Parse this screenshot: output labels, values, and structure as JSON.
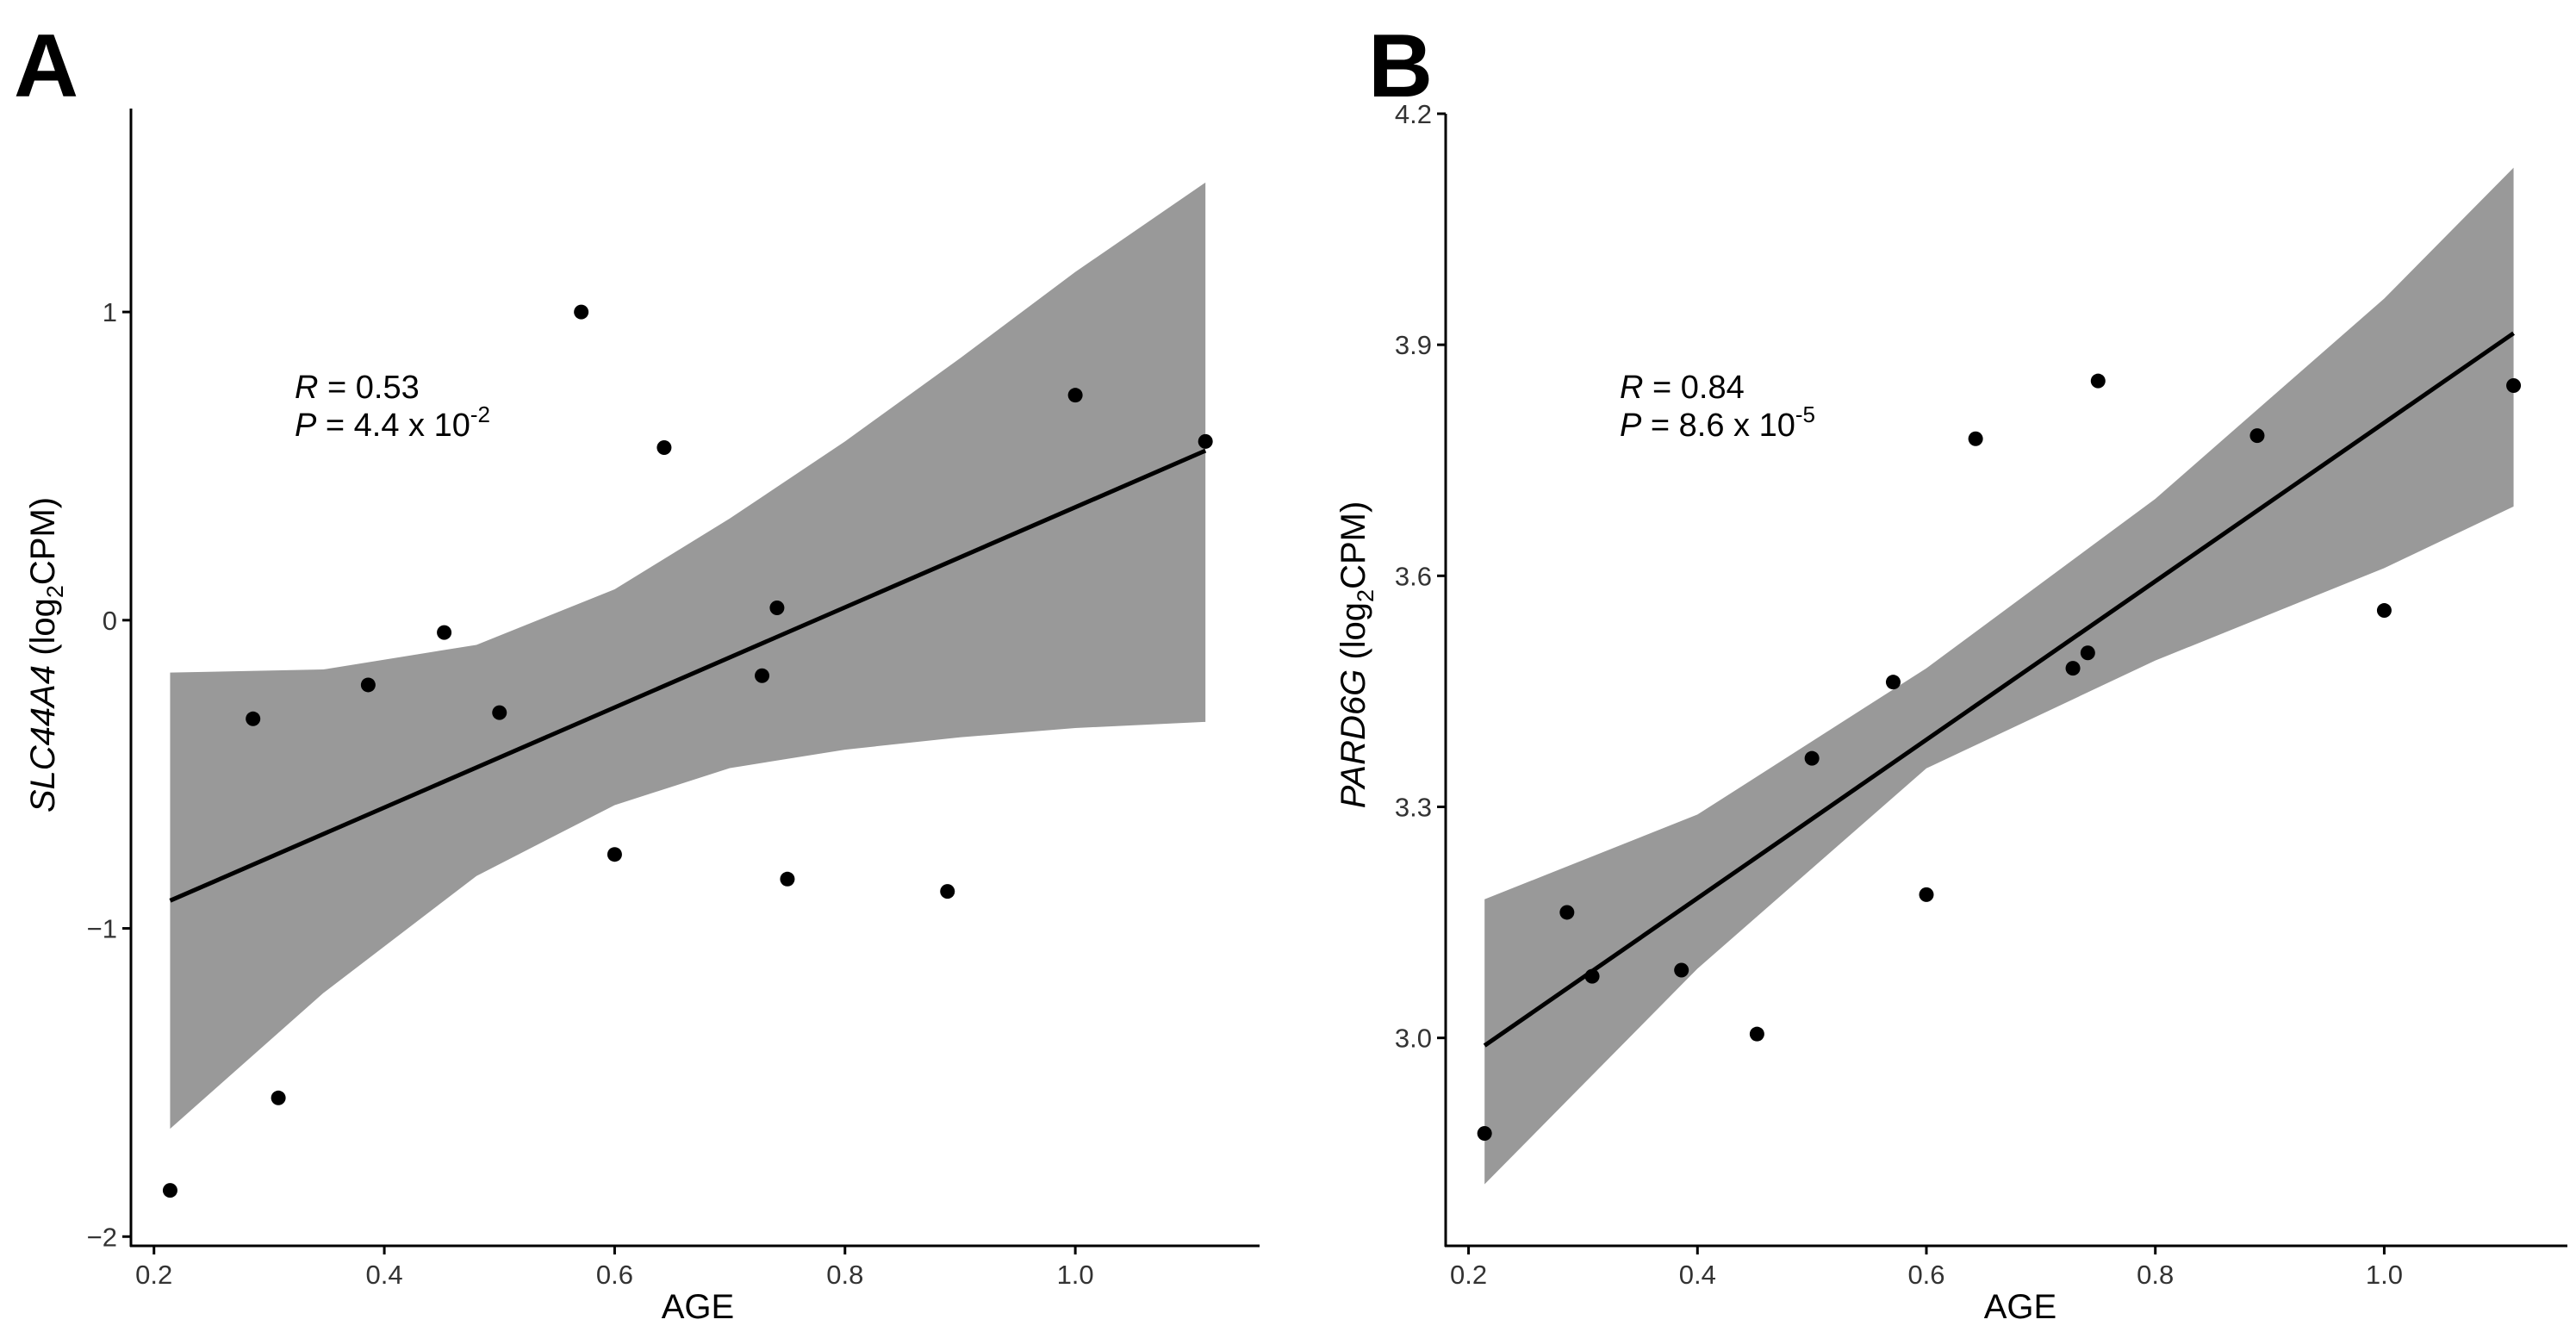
{
  "chart_data": [
    {
      "panel": "A",
      "type": "scatter",
      "xlabel": "AGE",
      "ylabel_gene": "SLC44A4",
      "ylabel_unit_prefix": " (log",
      "ylabel_unit_sub": "2",
      "ylabel_unit_suffix": "CPM)",
      "xlim": [
        0.18,
        1.16
      ],
      "ylim": [
        -2.03,
        1.66
      ],
      "xticks": [
        0.2,
        0.4,
        0.6,
        0.8,
        1.0
      ],
      "xtick_labels": [
        "0.2",
        "0.4",
        "0.6",
        "0.8",
        "1.0"
      ],
      "yticks": [
        -2,
        -1,
        0,
        1
      ],
      "ytick_labels": [
        "−2",
        "−1",
        "0",
        "1"
      ],
      "grid": false,
      "stats": {
        "r_symbol": "R",
        "r_text": " = 0.53",
        "p_symbol": "P",
        "p_text": " = 4.4 x 10",
        "p_exp": "-2"
      },
      "points": [
        {
          "x": 0.214,
          "y": -1.85
        },
        {
          "x": 0.286,
          "y": -0.32
        },
        {
          "x": 0.308,
          "y": -1.55
        },
        {
          "x": 0.386,
          "y": -0.21
        },
        {
          "x": 0.452,
          "y": -0.04
        },
        {
          "x": 0.5,
          "y": -0.3
        },
        {
          "x": 0.571,
          "y": 1.0
        },
        {
          "x": 0.6,
          "y": -0.76
        },
        {
          "x": 0.643,
          "y": 0.56
        },
        {
          "x": 0.728,
          "y": -0.18
        },
        {
          "x": 0.741,
          "y": 0.04
        },
        {
          "x": 0.75,
          "y": -0.84
        },
        {
          "x": 0.889,
          "y": -0.88
        },
        {
          "x": 1.0,
          "y": 0.73
        },
        {
          "x": 1.113,
          "y": 0.58
        }
      ],
      "fit_line": {
        "x": [
          0.214,
          1.113
        ],
        "y": [
          -0.91,
          0.55
        ]
      },
      "ci_band": {
        "x": [
          0.214,
          0.347,
          0.48,
          0.6,
          0.7,
          0.8,
          0.9,
          1.0,
          1.113
        ],
        "lower": [
          -1.65,
          -1.21,
          -0.83,
          -0.6,
          -0.48,
          -0.42,
          -0.38,
          -0.35,
          -0.33
        ],
        "upper": [
          -0.17,
          -0.16,
          -0.08,
          0.1,
          0.33,
          0.58,
          0.85,
          1.13,
          1.42
        ]
      },
      "colors": {
        "points": "#000000",
        "line": "#000000",
        "band": "#999999"
      }
    },
    {
      "panel": "B",
      "type": "scatter",
      "xlabel": "AGE",
      "ylabel_gene": "PARD6G",
      "ylabel_unit_prefix": " (log",
      "ylabel_unit_sub": "2",
      "ylabel_unit_suffix": "CPM)",
      "xlim": [
        0.18,
        1.16
      ],
      "ylim": [
        2.73,
        4.2
      ],
      "xticks": [
        0.2,
        0.4,
        0.6,
        0.8,
        1.0
      ],
      "xtick_labels": [
        "0.2",
        "0.4",
        "0.6",
        "0.8",
        "1.0"
      ],
      "yticks": [
        3.0,
        3.3,
        3.6,
        3.9,
        4.2
      ],
      "ytick_labels": [
        "3.0",
        "3.3",
        "3.6",
        "3.9",
        "4.2"
      ],
      "grid": false,
      "stats": {
        "r_symbol": "R",
        "r_text": " = 0.84",
        "p_symbol": "P",
        "p_text": " = 8.6 x 10",
        "p_exp": "-5"
      },
      "points": [
        {
          "x": 0.214,
          "y": 2.876
        },
        {
          "x": 0.286,
          "y": 3.163
        },
        {
          "x": 0.308,
          "y": 3.08
        },
        {
          "x": 0.386,
          "y": 3.088
        },
        {
          "x": 0.452,
          "y": 3.005
        },
        {
          "x": 0.5,
          "y": 3.363
        },
        {
          "x": 0.571,
          "y": 3.462
        },
        {
          "x": 0.6,
          "y": 3.186
        },
        {
          "x": 0.643,
          "y": 3.778
        },
        {
          "x": 0.728,
          "y": 3.48
        },
        {
          "x": 0.741,
          "y": 3.5
        },
        {
          "x": 0.75,
          "y": 3.853
        },
        {
          "x": 0.889,
          "y": 3.782
        },
        {
          "x": 1.0,
          "y": 3.555
        },
        {
          "x": 1.113,
          "y": 3.847
        }
      ],
      "fit_line": {
        "x": [
          0.214,
          1.113
        ],
        "y": [
          2.99,
          3.915
        ]
      },
      "ci_band": {
        "x": [
          0.214,
          0.4,
          0.6,
          0.8,
          1.0,
          1.113
        ],
        "lower": [
          2.81,
          3.09,
          3.35,
          3.49,
          3.61,
          3.69
        ],
        "upper": [
          3.18,
          3.29,
          3.48,
          3.7,
          3.96,
          4.13
        ]
      },
      "colors": {
        "points": "#000000",
        "line": "#000000",
        "band": "#999999"
      }
    }
  ]
}
